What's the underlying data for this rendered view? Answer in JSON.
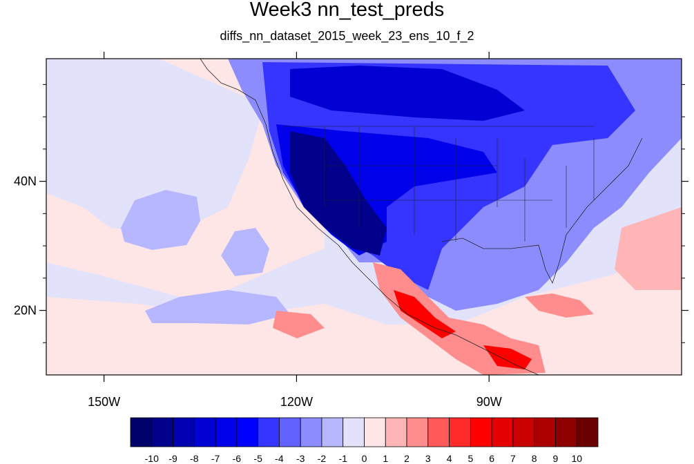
{
  "title": "Week3 nn_test_preds",
  "subtitle": "diffs_nn_dataset_2015_week_23_ens_10_f_2",
  "map": {
    "projection": "cylindrical-equidistant",
    "lon_range": [
      -159,
      -60
    ],
    "lat_range": [
      10,
      59
    ],
    "coastlines": true,
    "state_borders": true,
    "x_ticks": [
      {
        "lon": -150,
        "label": "150W"
      },
      {
        "lon": -120,
        "label": "120W"
      },
      {
        "lon": -90,
        "label": "90W"
      }
    ],
    "y_ticks": [
      {
        "lat": 20,
        "label": "20N"
      },
      {
        "lat": 40,
        "label": "40N"
      }
    ]
  },
  "colorbar": {
    "colors": [
      "#00006b",
      "#00008b",
      "#0000b0",
      "#0000d2",
      "#0000eb",
      "#0000ff",
      "#3535ff",
      "#6161ff",
      "#8c8cff",
      "#b7b7ff",
      "#e2e2fa",
      "#ffe6e6",
      "#ffb5b5",
      "#ff8d8d",
      "#ff5a5a",
      "#ff2a2a",
      "#ff0000",
      "#e40000",
      "#c90000",
      "#ac0000",
      "#8e0000",
      "#6b0000"
    ],
    "labels": [
      "-10",
      "-9",
      "-8",
      "-7",
      "-6",
      "-5",
      "-4",
      "-3",
      "-2",
      "-1",
      "0",
      "1",
      "2",
      "3",
      "4",
      "5",
      "6",
      "7",
      "8",
      "9",
      "10"
    ]
  }
}
